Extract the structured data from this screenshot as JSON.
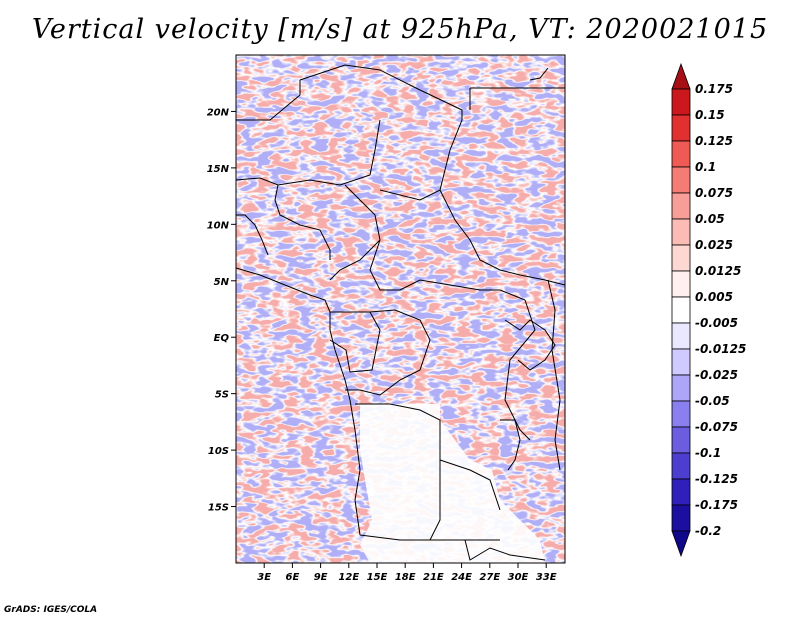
{
  "title": "Vertical velocity [m/s] at 925hPa, VT: 2020021015",
  "credit": "GrADS: IGES/COLA",
  "map": {
    "variable": "Vertical velocity",
    "units": "m/s",
    "level": "925hPa",
    "valid_time": "2020021015",
    "lat_range": [
      -20,
      25
    ],
    "lon_range": [
      0,
      35
    ],
    "lat_labels": [
      "20N",
      "15N",
      "10N",
      "5N",
      "EQ",
      "5S",
      "10S",
      "15S"
    ],
    "lon_labels": [
      "3E",
      "6E",
      "9E",
      "12E",
      "15E",
      "18E",
      "21E",
      "24E",
      "27E",
      "30E",
      "33E"
    ]
  },
  "colorbar": {
    "labels": [
      "0.175",
      "0.15",
      "0.125",
      "0.1",
      "0.075",
      "0.05",
      "0.025",
      "0.0125",
      "0.005",
      "-0.005",
      "-0.0125",
      "-0.025",
      "-0.05",
      "-0.075",
      "-0.1",
      "-0.125",
      "-0.175",
      "-0.2"
    ],
    "colors": [
      "#a50f15",
      "#cb181d",
      "#e03030",
      "#ef5a55",
      "#f47c75",
      "#f89e98",
      "#fbbcb6",
      "#fdd8d3",
      "#fff0ee",
      "#ffffff",
      "#eae8ff",
      "#cfcaff",
      "#ada5f7",
      "#8a7fee",
      "#6a5de0",
      "#4c3fcf",
      "#3020bb",
      "#1c0fa0",
      "#10088a"
    ]
  }
}
